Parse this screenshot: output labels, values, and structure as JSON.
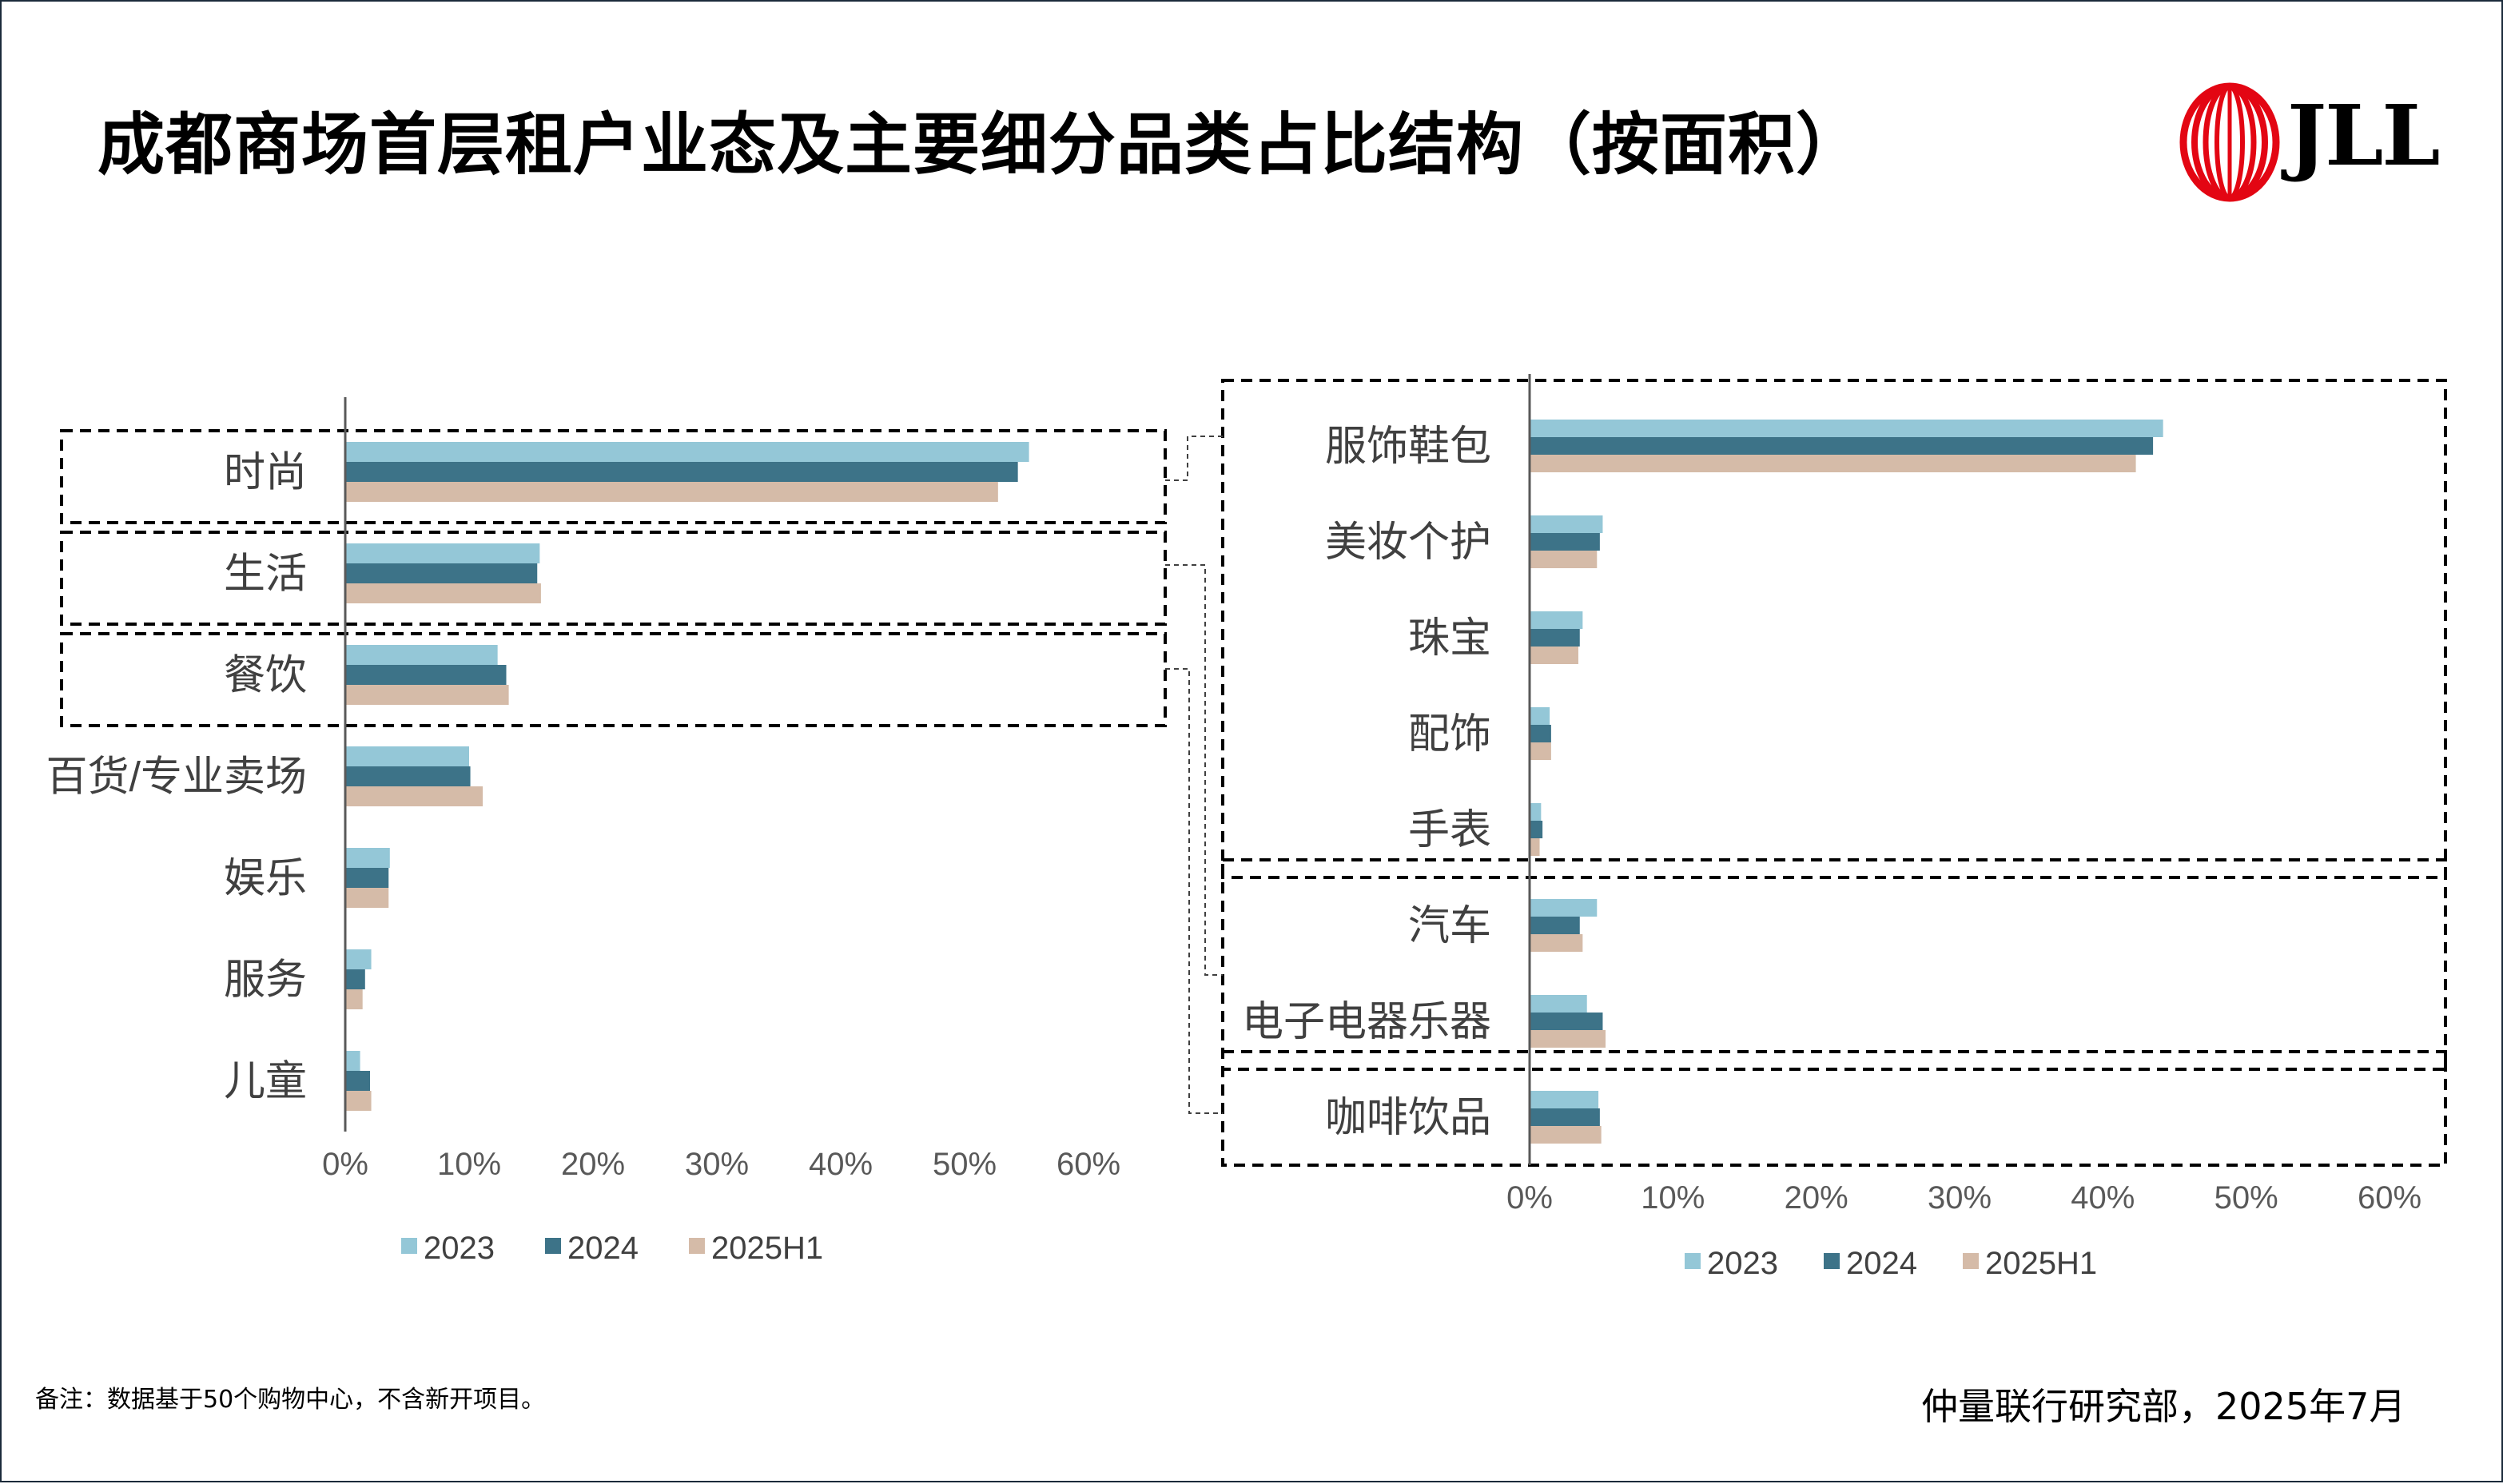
{
  "title": "成都商场首层租户业态及主要细分品类占比结构（按面积）",
  "logo": {
    "text": "JLL"
  },
  "colors": {
    "s2023": "#94c7d7",
    "s2024": "#3d7388",
    "s2025": "#d5bba8",
    "axis": "#595959",
    "frame": "#000000"
  },
  "note": "备注：数据基于50个购物中心，不含新开项目。",
  "source": "仲量联行研究部，2025年7月",
  "chart_data": [
    {
      "type": "bar",
      "orientation": "horizontal",
      "categories": [
        "时尚",
        "生活",
        "餐饮",
        "百货/专业卖场",
        "娱乐",
        "服务",
        "儿童"
      ],
      "series": [
        {
          "name": "2023",
          "values": [
            55.2,
            15.7,
            12.3,
            10.0,
            3.6,
            2.1,
            1.2
          ]
        },
        {
          "name": "2024",
          "values": [
            54.3,
            15.5,
            13.0,
            10.1,
            3.5,
            1.6,
            2.0
          ]
        },
        {
          "name": "2025H1",
          "values": [
            52.7,
            15.8,
            13.2,
            11.1,
            3.5,
            1.4,
            2.1
          ]
        }
      ],
      "xlim": [
        0,
        60
      ],
      "xticks": [
        "0%",
        "10%",
        "20%",
        "30%",
        "40%",
        "50%",
        "60%"
      ],
      "boxed_groups": [
        [
          "时尚"
        ],
        [
          "生活"
        ],
        [
          "餐饮"
        ]
      ],
      "legend": [
        "2023",
        "2024",
        "2025H1"
      ]
    },
    {
      "type": "bar",
      "orientation": "horizontal",
      "categories": [
        "服饰鞋包",
        "美妆个护",
        "珠宝",
        "配饰",
        "手表",
        "汽车",
        "电子电器乐器",
        "咖啡饮品"
      ],
      "series": [
        {
          "name": "2023",
          "values": [
            44.2,
            5.1,
            3.7,
            1.4,
            0.8,
            4.7,
            4.0,
            4.8
          ]
        },
        {
          "name": "2024",
          "values": [
            43.5,
            4.9,
            3.5,
            1.5,
            0.9,
            3.5,
            5.1,
            4.9
          ]
        },
        {
          "name": "2025H1",
          "values": [
            42.3,
            4.7,
            3.4,
            1.5,
            0.7,
            3.7,
            5.3,
            5.0
          ]
        }
      ],
      "xlim": [
        0,
        60
      ],
      "xticks": [
        "0%",
        "10%",
        "20%",
        "30%",
        "40%",
        "50%",
        "60%"
      ],
      "boxed_groups": [
        [
          "服饰鞋包",
          "美妆个护",
          "珠宝",
          "配饰",
          "手表"
        ],
        [
          "汽车",
          "电子电器乐器"
        ],
        [
          "咖啡饮品"
        ]
      ],
      "legend": [
        "2023",
        "2024",
        "2025H1"
      ]
    }
  ]
}
